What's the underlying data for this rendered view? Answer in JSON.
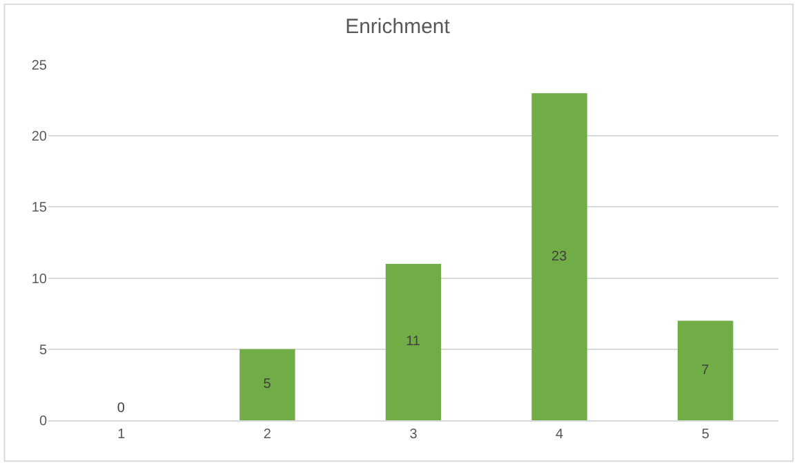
{
  "chart_data": {
    "type": "bar",
    "title": "Enrichment",
    "categories": [
      "1",
      "2",
      "3",
      "4",
      "5"
    ],
    "values": [
      0,
      5,
      11,
      23,
      7
    ],
    "color": "#70ad47",
    "ylim": [
      0,
      25
    ],
    "yticks": [
      0,
      5,
      10,
      15,
      20,
      25
    ],
    "grid": "y",
    "data_labels": true
  }
}
